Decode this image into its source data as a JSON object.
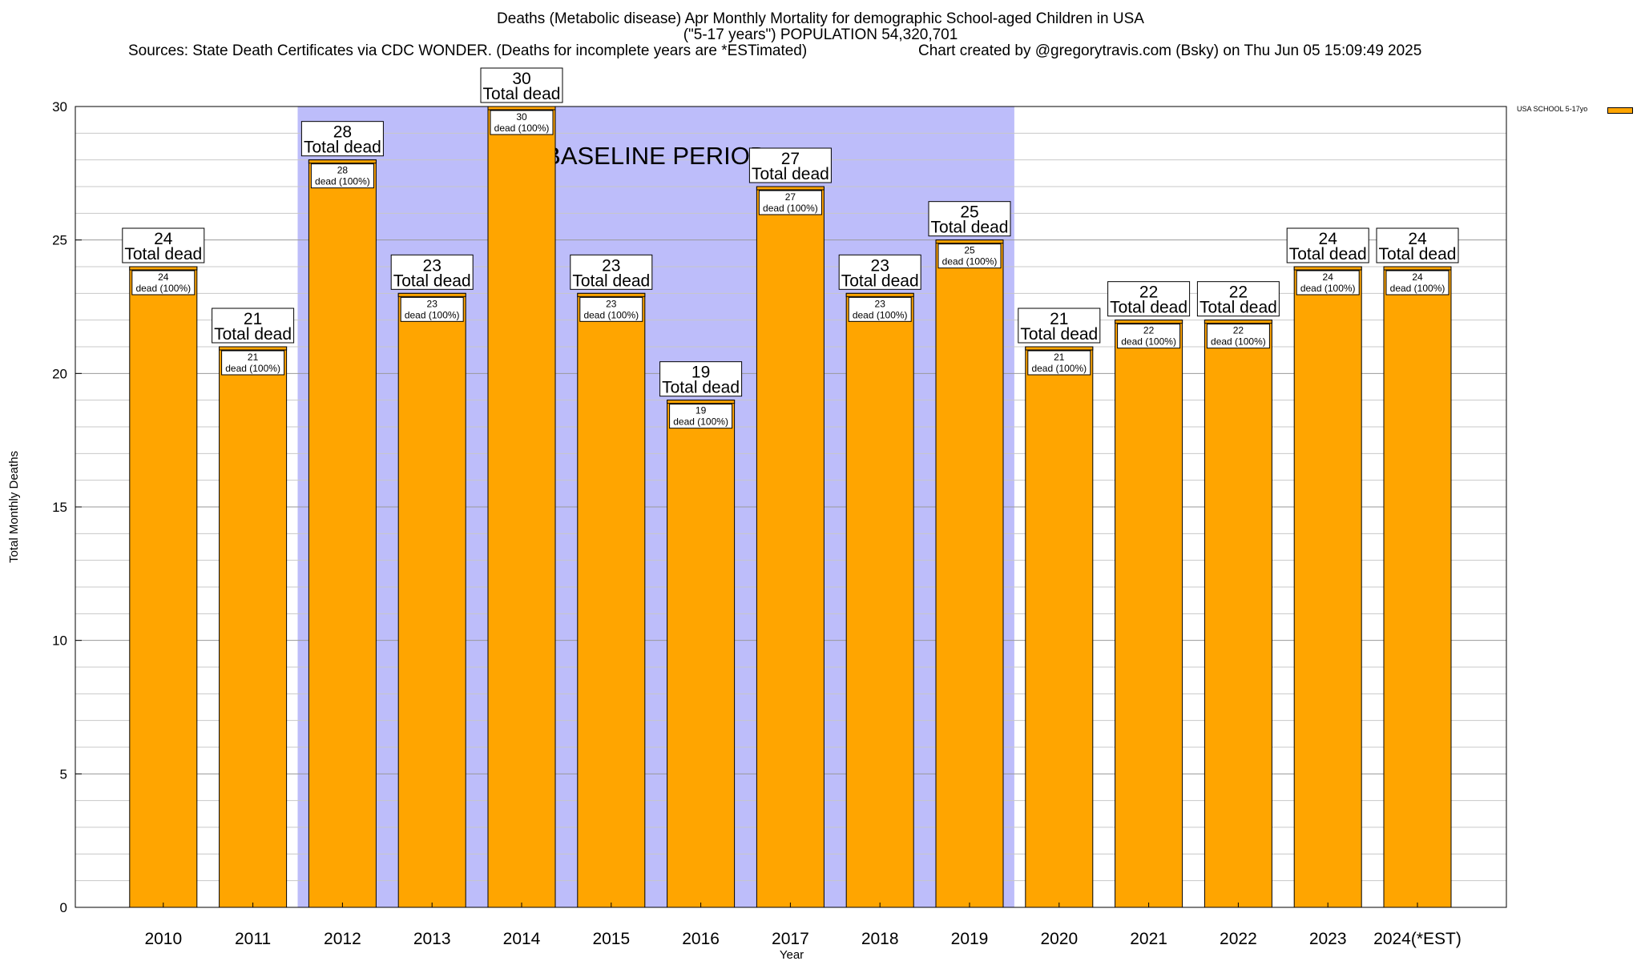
{
  "title": {
    "line1": "Deaths (Metabolic disease) Apr Monthly Mortality for demographic School-aged Children in USA",
    "line2": "(\"5-17 years\") POPULATION 54,320,701",
    "sources": "Sources: State Death Certificates via CDC WONDER. (Deaths for incomplete years are *ESTimated)",
    "credit": "Chart created by @gregorytravis.com (Bsky) on Thu Jun 05 15:09:49 2025"
  },
  "legend": {
    "label": "USA SCHOOL 5-17yo",
    "color": "#FFA500"
  },
  "baseline": {
    "label": "BASELINE PERIOD",
    "start": "2012",
    "end": "2019",
    "color": "#BDBDFA"
  },
  "chart_data": {
    "type": "bar",
    "categories": [
      "2010",
      "2011",
      "2012",
      "2013",
      "2014",
      "2015",
      "2016",
      "2017",
      "2018",
      "2019",
      "2020",
      "2021",
      "2022",
      "2023",
      "2024(*EST)"
    ],
    "series": [
      {
        "name": "USA SCHOOL 5-17yo",
        "values": [
          24,
          21,
          28,
          23,
          30,
          23,
          19,
          27,
          23,
          25,
          21,
          22,
          22,
          24,
          24
        ]
      }
    ],
    "xlabel": "Year",
    "ylabel": "Total Monthly Deaths",
    "ylim": [
      0,
      30
    ],
    "yticks": [
      0,
      5,
      10,
      15,
      20,
      25,
      30
    ],
    "grid": true,
    "legend_position": "top-right",
    "bar_label_top": "Total dead",
    "bar_label_inner": "dead (100%)"
  }
}
